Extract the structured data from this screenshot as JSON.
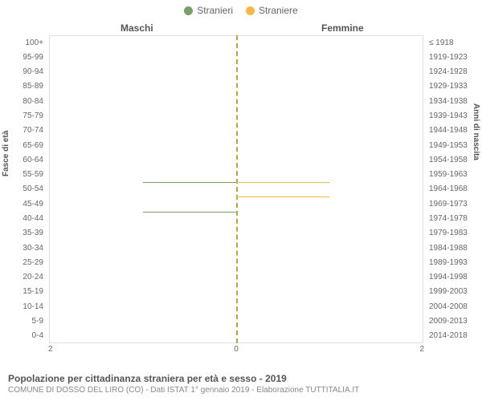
{
  "legend": {
    "male": {
      "label": "Stranieri",
      "color": "#7a9e6a"
    },
    "female": {
      "label": "Straniere",
      "color": "#f2b84b"
    }
  },
  "headers": {
    "left": "Maschi",
    "right": "Femmine"
  },
  "y_axis_left_title": "Fasce di età",
  "y_axis_right_title": "Anni di nascita",
  "midline_color": "#b9a24a",
  "x_axis": {
    "max": 2,
    "ticks": [
      2,
      0,
      2
    ]
  },
  "plot": {
    "border_color": "#e0e0e0",
    "background": "#ffffff"
  },
  "rows": [
    {
      "age": "100+",
      "birth": "≤ 1918",
      "m": 0,
      "f": 0
    },
    {
      "age": "95-99",
      "birth": "1919-1923",
      "m": 0,
      "f": 0
    },
    {
      "age": "90-94",
      "birth": "1924-1928",
      "m": 0,
      "f": 0
    },
    {
      "age": "85-89",
      "birth": "1929-1933",
      "m": 0,
      "f": 0
    },
    {
      "age": "80-84",
      "birth": "1934-1938",
      "m": 0,
      "f": 0
    },
    {
      "age": "75-79",
      "birth": "1939-1943",
      "m": 0,
      "f": 0
    },
    {
      "age": "70-74",
      "birth": "1944-1948",
      "m": 0,
      "f": 0
    },
    {
      "age": "65-69",
      "birth": "1949-1953",
      "m": 0,
      "f": 0
    },
    {
      "age": "60-64",
      "birth": "1954-1958",
      "m": 0,
      "f": 0
    },
    {
      "age": "55-59",
      "birth": "1959-1963",
      "m": 0,
      "f": 0
    },
    {
      "age": "50-54",
      "birth": "1964-1968",
      "m": 1,
      "f": 1
    },
    {
      "age": "45-49",
      "birth": "1969-1973",
      "m": 0,
      "f": 1
    },
    {
      "age": "40-44",
      "birth": "1974-1978",
      "m": 1,
      "f": 0
    },
    {
      "age": "35-39",
      "birth": "1979-1983",
      "m": 0,
      "f": 0
    },
    {
      "age": "30-34",
      "birth": "1984-1988",
      "m": 0,
      "f": 0
    },
    {
      "age": "25-29",
      "birth": "1989-1993",
      "m": 0,
      "f": 0
    },
    {
      "age": "20-24",
      "birth": "1994-1998",
      "m": 0,
      "f": 0
    },
    {
      "age": "15-19",
      "birth": "1999-2003",
      "m": 0,
      "f": 0
    },
    {
      "age": "10-14",
      "birth": "2004-2008",
      "m": 0,
      "f": 0
    },
    {
      "age": "5-9",
      "birth": "2009-2013",
      "m": 0,
      "f": 0
    },
    {
      "age": "0-4",
      "birth": "2014-2018",
      "m": 0,
      "f": 0
    }
  ],
  "caption": {
    "title": "Popolazione per cittadinanza straniera per età e sesso - 2019",
    "sub": "COMUNE DI DOSSO DEL LIRO (CO) - Dati ISTAT 1° gennaio 2019 - Elaborazione TUTTITALIA.IT"
  }
}
